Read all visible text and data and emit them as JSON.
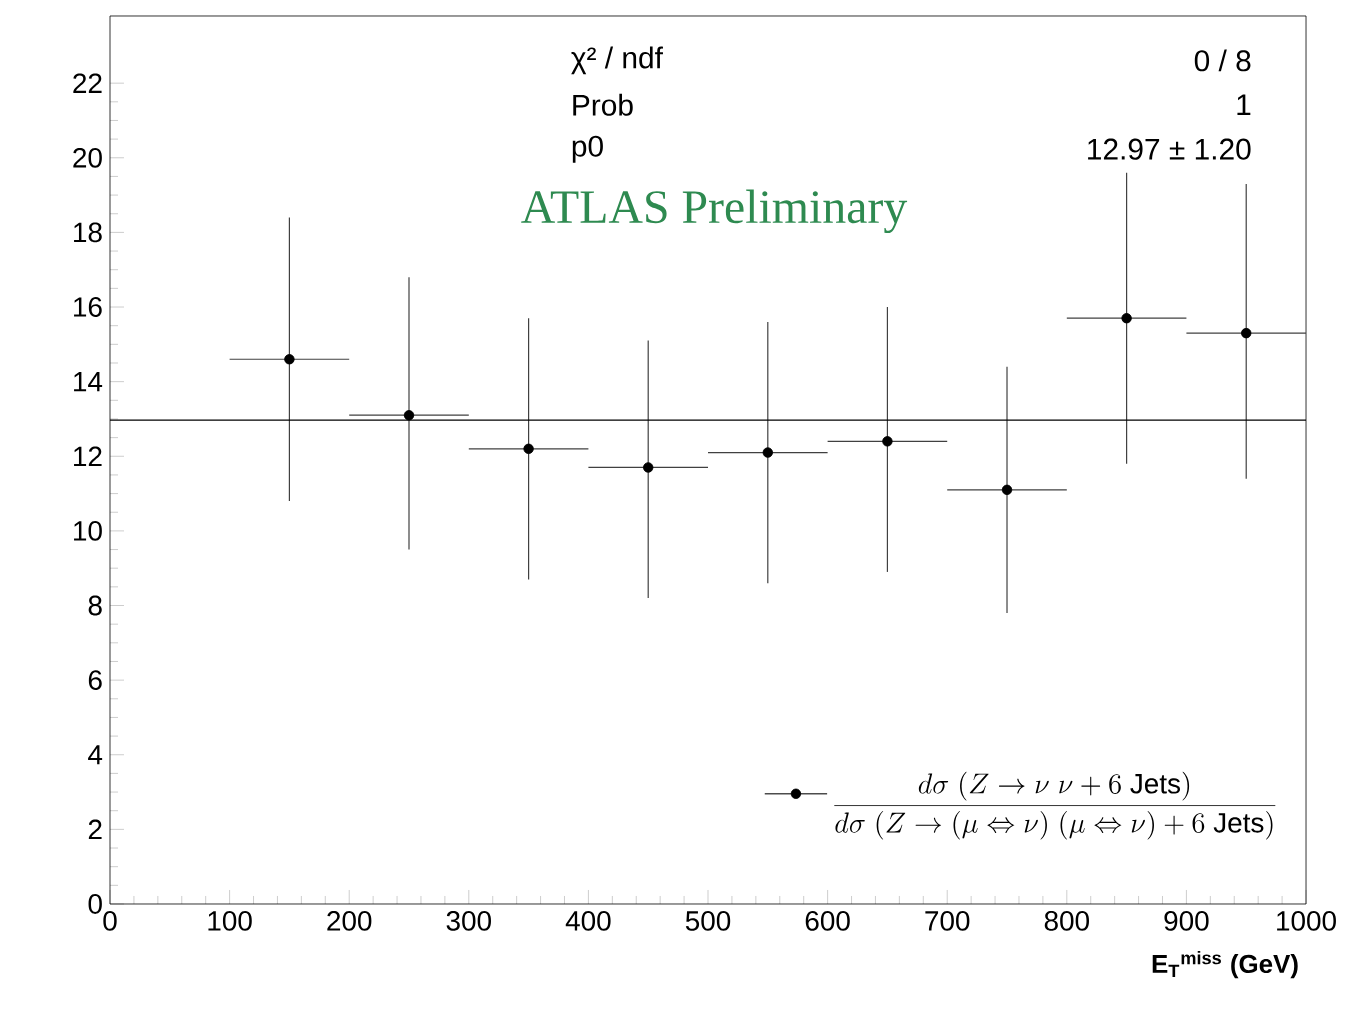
{
  "chart_data": {
    "type": "scatter",
    "xlabel": "E$_{T}$$^{miss}$ (GeV)",
    "x": [
      150,
      250,
      350,
      450,
      550,
      650,
      750,
      850,
      950
    ],
    "series": [
      {
        "name": "\\frac{d\\sigma\\;(Z\\to\\nu\\;\\nu+6\\ \\mathrm{Jets})}{d\\sigma\\;(Z\\to(\\mu\\Leftrightarrow\\nu)\\;(\\mu\\Leftrightarrow\\nu)+6\\ \\mathrm{Jets})}",
        "color": "#000000",
        "values": [
          14.6,
          13.1,
          12.2,
          11.7,
          12.1,
          12.4,
          11.1,
          15.7,
          15.3
        ],
        "errors": [
          [
            10.8,
            18.4
          ],
          [
            9.5,
            16.8
          ],
          [
            8.7,
            15.7
          ],
          [
            8.2,
            15.1
          ],
          [
            8.6,
            15.6
          ],
          [
            8.9,
            16.0
          ],
          [
            7.8,
            14.4
          ],
          [
            11.8,
            19.6
          ],
          [
            11.4,
            19.3
          ]
        ],
        "xerrors": [
          50,
          50,
          50,
          50,
          50,
          50,
          50,
          50,
          50
        ]
      }
    ],
    "ref_lines": [
      {
        "axis": "y",
        "value": 12.97,
        "color": "#000000"
      }
    ],
    "annotations": [
      "χ² / ndf",
      "0 / 8",
      "Prob",
      "1",
      "p0",
      "12.97 ± 1.20",
      "ATLAS Preliminary"
    ],
    "xlim": [
      0,
      1000
    ],
    "ylim": [
      0,
      23.8
    ],
    "xticks": [
      0,
      100,
      200,
      300,
      400,
      500,
      600,
      700,
      800,
      900,
      1000
    ],
    "yticks": [
      0,
      2,
      4,
      6,
      8,
      10,
      12,
      14,
      16,
      18,
      20,
      22
    ],
    "grid": false,
    "legend": "bottom right",
    "marker": "circle"
  }
}
